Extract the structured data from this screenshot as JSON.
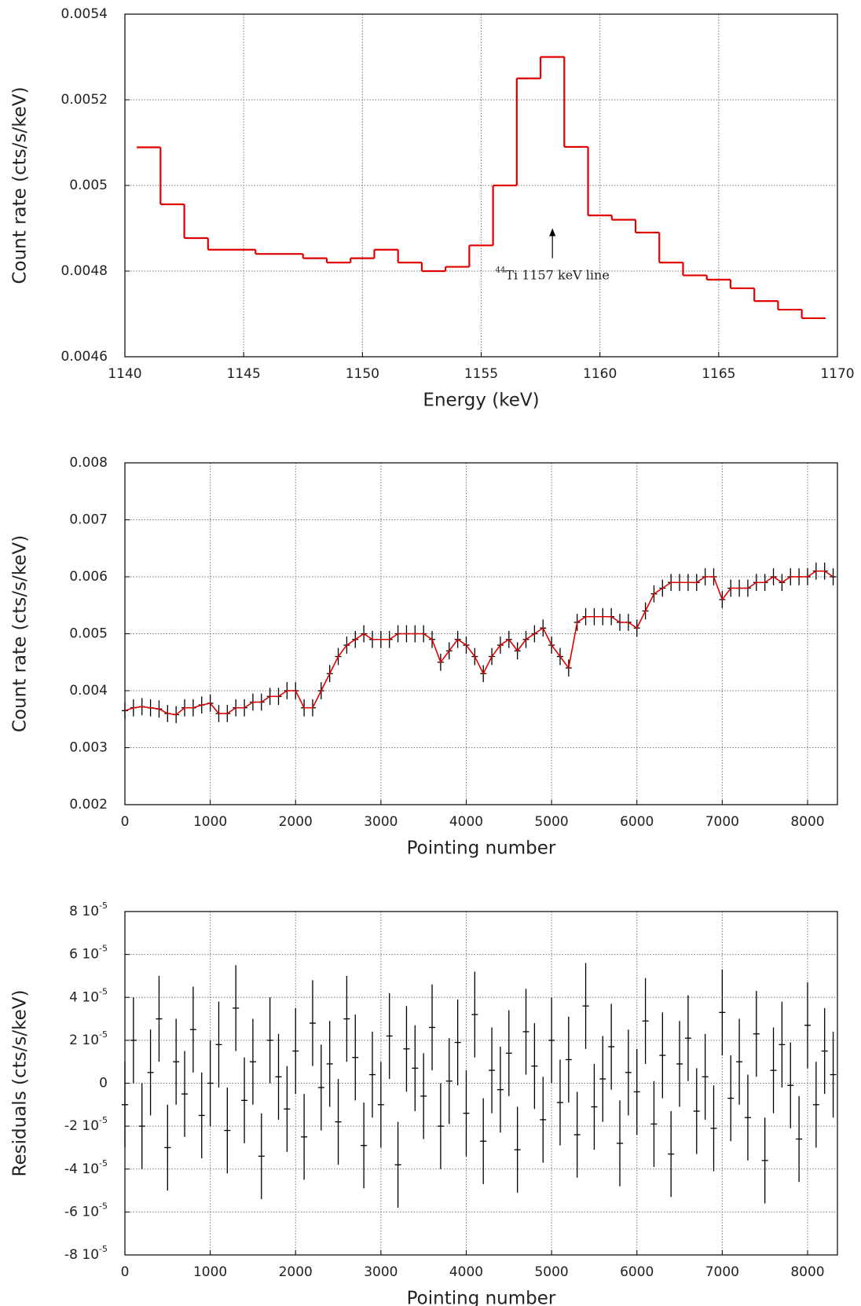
{
  "chart_data": [
    {
      "type": "histogram",
      "color": "#e00000",
      "xlabel": "Energy (keV)",
      "ylabel": "Count rate (cts/s/keV)",
      "bins": [
        1140.5,
        1141.5,
        1142.5,
        1143.5,
        1144.5,
        1145.5,
        1146.5,
        1147.5,
        1148.5,
        1149.5,
        1150.5,
        1151.5,
        1152.5,
        1153.5,
        1154.5,
        1155.5,
        1156.5,
        1157.5,
        1158.5,
        1159.5,
        1160.5,
        1161.5,
        1162.5,
        1163.5,
        1164.5,
        1165.5,
        1166.5,
        1167.5,
        1168.5,
        1169.5
      ],
      "values": [
        0.005089,
        0.004956,
        0.004877,
        0.00485,
        0.00485,
        0.00484,
        0.00484,
        0.00483,
        0.00482,
        0.00483,
        0.00485,
        0.00482,
        0.0048,
        0.00481,
        0.00486,
        0.005,
        0.00525,
        0.0053,
        0.00509,
        0.00493,
        0.00492,
        0.00489,
        0.00482,
        0.00479,
        0.00478,
        0.00476,
        0.00473,
        0.00471,
        0.00469
      ],
      "xlim": [
        1140,
        1170
      ],
      "xticks": [
        1140,
        1145,
        1150,
        1155,
        1160,
        1165,
        1170
      ],
      "ylim": [
        0.0046,
        0.0054
      ],
      "yticks": [
        0.0046,
        0.0048,
        0.005,
        0.0052,
        0.0054
      ],
      "grid": true,
      "annotation": {
        "superscript": "44",
        "text": "Ti 1157 keV line",
        "xy": [
          1158,
          0.0049
        ],
        "xytext": [
          1158,
          0.00483
        ]
      }
    },
    {
      "type": "errorbar",
      "xlabel": "Pointing number",
      "ylabel": "Count rate (cts/s/keV)",
      "x": [
        0,
        100,
        200,
        300,
        400,
        500,
        600,
        700,
        800,
        900,
        1000,
        1100,
        1200,
        1300,
        1400,
        1500,
        1600,
        1700,
        1800,
        1900,
        2000,
        2100,
        2200,
        2300,
        2400,
        2500,
        2600,
        2700,
        2800,
        2900,
        3000,
        3100,
        3200,
        3300,
        3400,
        3500,
        3600,
        3700,
        3800,
        3900,
        4000,
        4100,
        4200,
        4300,
        4400,
        4500,
        4600,
        4700,
        4800,
        4900,
        5000,
        5100,
        5200,
        5300,
        5400,
        5500,
        5600,
        5700,
        5800,
        5900,
        6000,
        6100,
        6200,
        6300,
        6400,
        6500,
        6600,
        6700,
        6800,
        6900,
        7000,
        7100,
        7200,
        7300,
        7400,
        7500,
        7600,
        7700,
        7800,
        7900,
        8000,
        8100,
        8200,
        8300
      ],
      "series": [
        {
          "color": "#000000",
          "style": "errorbar",
          "error": 0.00015,
          "values": [
            0.00365,
            0.0037,
            0.00372,
            0.0037,
            0.00368,
            0.0036,
            0.00358,
            0.0037,
            0.0037,
            0.00375,
            0.00378,
            0.0036,
            0.0036,
            0.0037,
            0.0037,
            0.0038,
            0.0038,
            0.0039,
            0.0039,
            0.004,
            0.004,
            0.0037,
            0.0037,
            0.004,
            0.0043,
            0.0046,
            0.0048,
            0.0049,
            0.005,
            0.0049,
            0.0049,
            0.0049,
            0.005,
            0.005,
            0.005,
            0.005,
            0.0049,
            0.0045,
            0.0047,
            0.0049,
            0.0048,
            0.0046,
            0.0043,
            0.0046,
            0.0048,
            0.0049,
            0.0047,
            0.0049,
            0.005,
            0.0051,
            0.0048,
            0.0046,
            0.0044,
            0.0052,
            0.0053,
            0.0053,
            0.0053,
            0.0053,
            0.0052,
            0.0052,
            0.0051,
            0.0054,
            0.0057,
            0.0058,
            0.0059,
            0.0059,
            0.0059,
            0.0059,
            0.006,
            0.006,
            0.0056,
            0.0058,
            0.0058,
            0.0058,
            0.0059,
            0.0059,
            0.006,
            0.0059,
            0.006,
            0.006,
            0.006,
            0.0061,
            0.0061,
            0.006
          ]
        },
        {
          "color": "#e00000",
          "style": "line",
          "values": [
            0.00365,
            0.0037,
            0.00372,
            0.0037,
            0.00368,
            0.0036,
            0.00358,
            0.0037,
            0.0037,
            0.00375,
            0.00378,
            0.0036,
            0.0036,
            0.0037,
            0.0037,
            0.0038,
            0.0038,
            0.0039,
            0.0039,
            0.004,
            0.004,
            0.0037,
            0.0037,
            0.004,
            0.0043,
            0.0046,
            0.0048,
            0.0049,
            0.005,
            0.0049,
            0.0049,
            0.0049,
            0.005,
            0.005,
            0.005,
            0.005,
            0.0049,
            0.0045,
            0.0047,
            0.0049,
            0.0048,
            0.0046,
            0.0043,
            0.0046,
            0.0048,
            0.0049,
            0.0047,
            0.0049,
            0.005,
            0.0051,
            0.0048,
            0.0046,
            0.0044,
            0.0052,
            0.0053,
            0.0053,
            0.0053,
            0.0053,
            0.0052,
            0.0052,
            0.0051,
            0.0054,
            0.0057,
            0.0058,
            0.0059,
            0.0059,
            0.0059,
            0.0059,
            0.006,
            0.006,
            0.0056,
            0.0058,
            0.0058,
            0.0058,
            0.0059,
            0.0059,
            0.006,
            0.0059,
            0.006,
            0.006,
            0.006,
            0.0061,
            0.0061,
            0.006
          ]
        }
      ],
      "xlim": [
        0,
        8350
      ],
      "xticks": [
        0,
        1000,
        2000,
        3000,
        4000,
        5000,
        6000,
        7000,
        8000
      ],
      "ylim": [
        0.002,
        0.008
      ],
      "yticks": [
        0.002,
        0.003,
        0.004,
        0.005,
        0.006,
        0.007,
        0.008
      ],
      "grid": true
    },
    {
      "type": "errorbar",
      "xlabel": "Pointing number",
      "ylabel": "Residuals (cts/s/keV)",
      "x": [
        0,
        100,
        200,
        300,
        400,
        500,
        600,
        700,
        800,
        900,
        1000,
        1100,
        1200,
        1300,
        1400,
        1500,
        1600,
        1700,
        1800,
        1900,
        2000,
        2100,
        2200,
        2300,
        2400,
        2500,
        2600,
        2700,
        2800,
        2900,
        3000,
        3100,
        3200,
        3300,
        3400,
        3500,
        3600,
        3700,
        3800,
        3900,
        4000,
        4100,
        4200,
        4300,
        4400,
        4500,
        4600,
        4700,
        4800,
        4900,
        5000,
        5100,
        5200,
        5300,
        5400,
        5500,
        5600,
        5700,
        5800,
        5900,
        6000,
        6100,
        6200,
        6300,
        6400,
        6500,
        6600,
        6700,
        6800,
        6900,
        7000,
        7100,
        7200,
        7300,
        7400,
        7500,
        7600,
        7700,
        7800,
        7900,
        8000,
        8100,
        8200,
        8300
      ],
      "series": [
        {
          "color": "#000000",
          "style": "errorbar",
          "error": 2e-05,
          "values": [
            -1e-05,
            2e-05,
            -2e-05,
            5e-06,
            3e-05,
            -3e-05,
            1e-05,
            -5e-06,
            2.5e-05,
            -1.5e-05,
            0,
            1.8e-05,
            -2.2e-05,
            3.5e-05,
            -8e-06,
            1e-05,
            -3.4e-05,
            2e-05,
            3e-06,
            -1.2e-05,
            1.5e-05,
            -2.5e-05,
            2.8e-05,
            -2e-06,
            9e-06,
            -1.8e-05,
            3e-05,
            1.2e-05,
            -2.9e-05,
            4e-06,
            -1e-05,
            2.2e-05,
            -3.8e-05,
            1.6e-05,
            7e-06,
            -6e-06,
            2.6e-05,
            -2e-05,
            1e-06,
            1.9e-05,
            -1.4e-05,
            3.2e-05,
            -2.7e-05,
            6e-06,
            -3e-06,
            1.4e-05,
            -3.1e-05,
            2.4e-05,
            8e-06,
            -1.7e-05,
            2e-05,
            -9e-06,
            1.1e-05,
            -2.4e-05,
            3.6e-05,
            -1.1e-05,
            2e-06,
            1.7e-05,
            -2.8e-05,
            5e-06,
            -4e-06,
            2.9e-05,
            -1.9e-05,
            1.3e-05,
            -3.3e-05,
            9e-06,
            2.1e-05,
            -1.3e-05,
            3e-06,
            -2.1e-05,
            3.3e-05,
            -7e-06,
            1e-05,
            -1.6e-05,
            2.3e-05,
            -3.6e-05,
            6e-06,
            1.8e-05,
            -1e-06,
            -2.6e-05,
            2.7e-05,
            -1e-05,
            1.5e-05,
            4e-06
          ]
        }
      ],
      "xlim": [
        0,
        8350
      ],
      "xticks": [
        0,
        1000,
        2000,
        3000,
        4000,
        5000,
        6000,
        7000,
        8000
      ],
      "ylim": [
        -8e-05,
        8e-05
      ],
      "yticks": [
        {
          "value": 8e-05,
          "label": "8 10",
          "exponent": "-5"
        },
        {
          "value": 6e-05,
          "label": "6 10",
          "exponent": "-5"
        },
        {
          "value": 4e-05,
          "label": "4 10",
          "exponent": "-5"
        },
        {
          "value": 2e-05,
          "label": "2 10",
          "exponent": "-5"
        },
        0,
        {
          "value": -2e-05,
          "label": "-2 10",
          "exponent": "-5"
        },
        {
          "value": -4e-05,
          "label": "-4 10",
          "exponent": "-5"
        },
        {
          "value": -6e-05,
          "label": "-6 10",
          "exponent": "-5"
        },
        {
          "value": -8e-05,
          "label": "-8 10",
          "exponent": "-5"
        }
      ],
      "grid": true
    }
  ]
}
